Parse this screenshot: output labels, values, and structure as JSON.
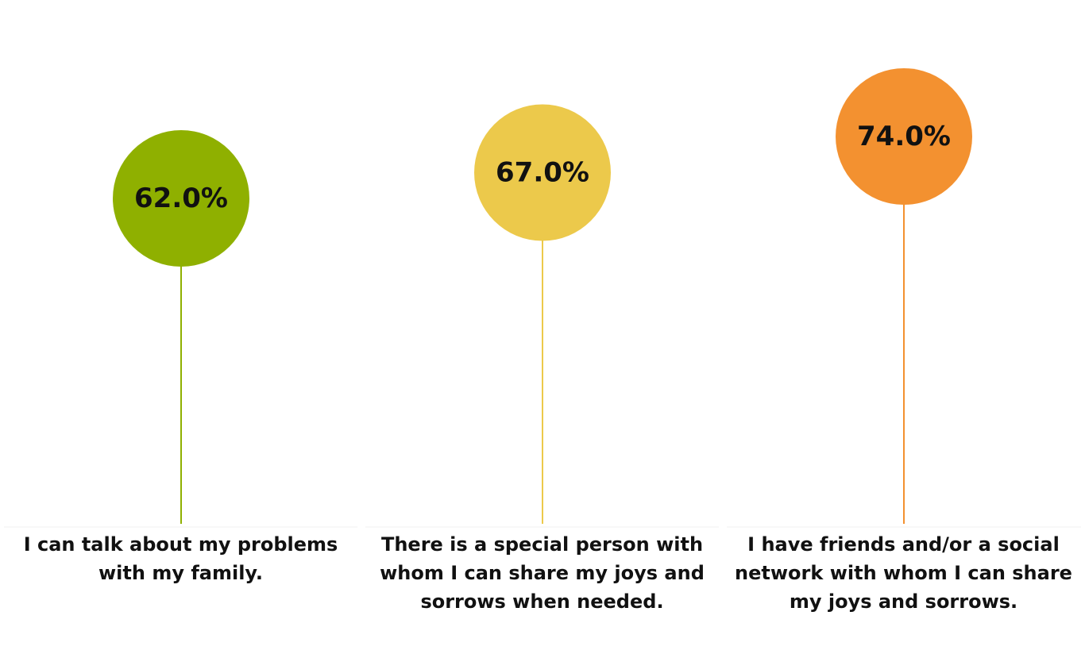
{
  "chart_data": {
    "type": "scatter",
    "style": "lollipop",
    "categories": [
      "I can talk about my problems with my family.",
      "There is a special person with whom I can share my joys and sorrows when needed.",
      "I have friends and/or a social network with whom I can share my joys and sorrows."
    ],
    "values": [
      62.0,
      67.0,
      74.0
    ],
    "value_labels": [
      "62.0%",
      "67.0%",
      "74.0%"
    ],
    "colors": [
      "#8fb000",
      "#ecc94b",
      "#f39130"
    ],
    "ylim": [
      0,
      100
    ],
    "grid": false,
    "title": "",
    "xlabel": "",
    "ylabel": ""
  }
}
